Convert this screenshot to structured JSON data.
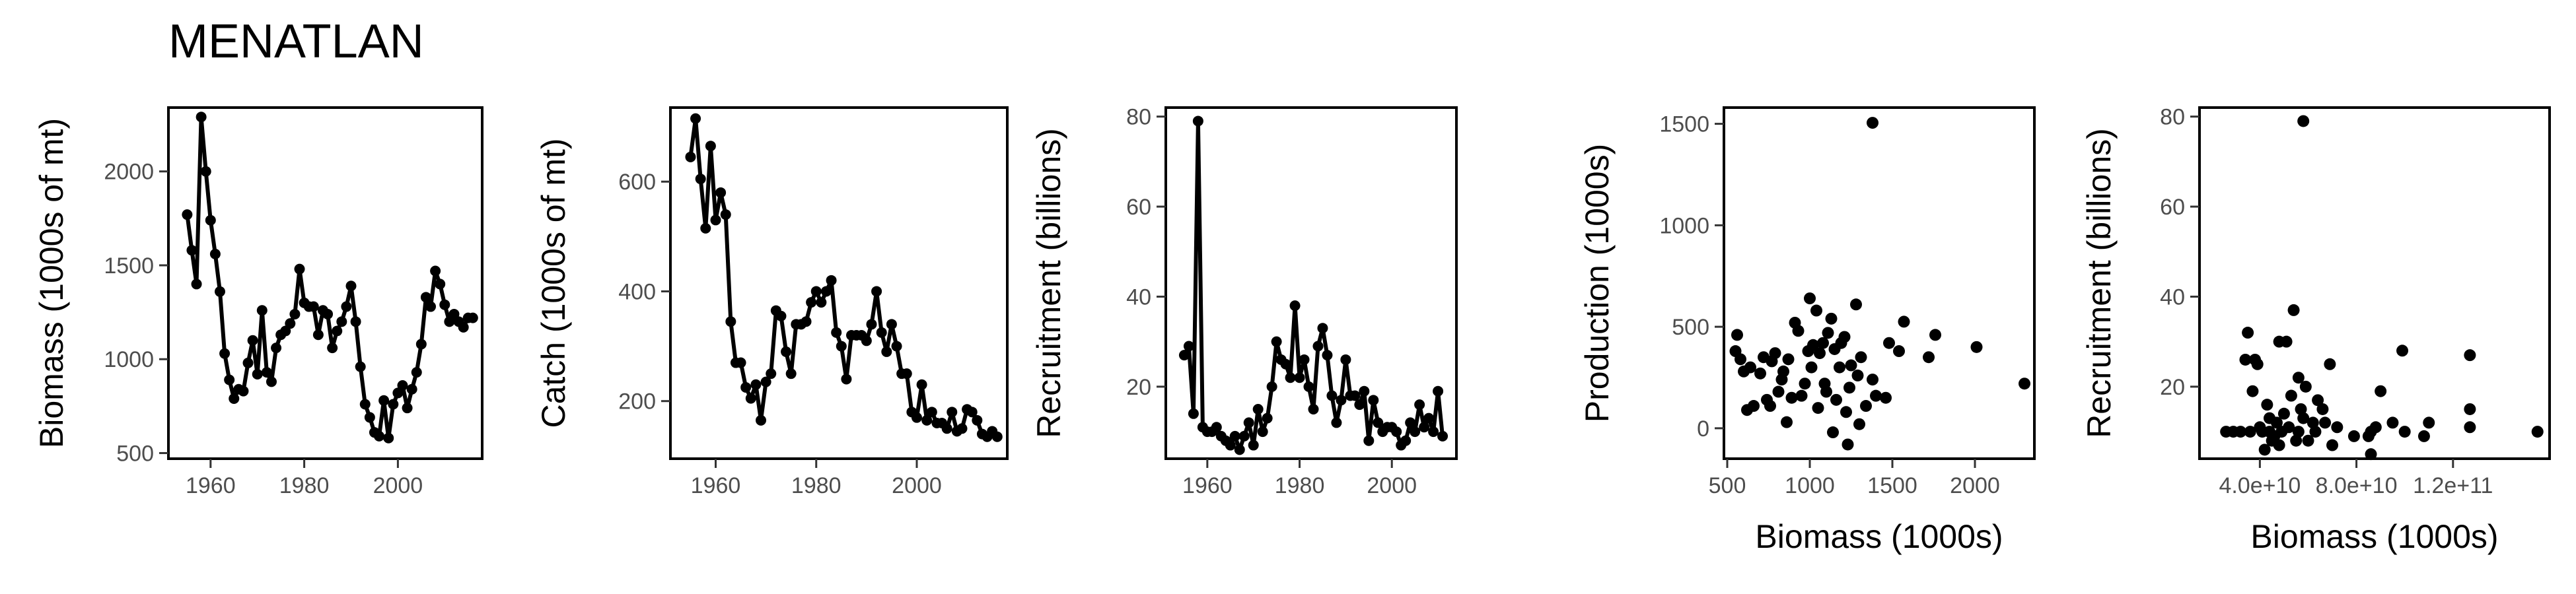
{
  "title": "MENATLAN",
  "chart_data": [
    {
      "type": "line",
      "xlabel": "",
      "ylabel": "Biomass (1000s of mt)",
      "xlim": [
        1951,
        2018
      ],
      "ylim": [
        470,
        2340
      ],
      "xticks": [
        1960,
        1980,
        2000
      ],
      "yticks": [
        500,
        1000,
        1500,
        2000
      ],
      "x": [
        1955,
        1956,
        1957,
        1958,
        1959,
        1960,
        1961,
        1962,
        1963,
        1964,
        1965,
        1966,
        1967,
        1968,
        1969,
        1970,
        1971,
        1972,
        1973,
        1974,
        1975,
        1976,
        1977,
        1978,
        1979,
        1980,
        1981,
        1982,
        1983,
        1984,
        1985,
        1986,
        1987,
        1988,
        1989,
        1990,
        1991,
        1992,
        1993,
        1994,
        1995,
        1996,
        1997,
        1998,
        1999,
        2000,
        2001,
        2002,
        2003,
        2004,
        2005,
        2006,
        2007,
        2008,
        2009,
        2010,
        2011,
        2012,
        2013,
        2014,
        2015,
        2016
      ],
      "y": [
        1770,
        1580,
        1400,
        2290,
        2000,
        1740,
        1560,
        1360,
        1030,
        890,
        790,
        840,
        830,
        980,
        1100,
        920,
        1260,
        930,
        880,
        1060,
        1130,
        1150,
        1190,
        1240,
        1480,
        1300,
        1280,
        1280,
        1130,
        1260,
        1240,
        1060,
        1150,
        1200,
        1280,
        1390,
        1200,
        960,
        760,
        690,
        610,
        590,
        780,
        580,
        760,
        820,
        860,
        740,
        840,
        930,
        1080,
        1330,
        1280,
        1470,
        1400,
        1290,
        1200,
        1240,
        1200,
        1170,
        1220,
        1220
      ]
    },
    {
      "type": "line",
      "xlabel": "",
      "ylabel": "Catch (1000s of mt)",
      "xlim": [
        1951,
        2018
      ],
      "ylim": [
        95,
        735
      ],
      "xticks": [
        1960,
        1980,
        2000
      ],
      "yticks": [
        200,
        400,
        600
      ],
      "x": [
        1955,
        1956,
        1957,
        1958,
        1959,
        1960,
        1961,
        1962,
        1963,
        1964,
        1965,
        1966,
        1967,
        1968,
        1969,
        1970,
        1971,
        1972,
        1973,
        1974,
        1975,
        1976,
        1977,
        1978,
        1979,
        1980,
        1981,
        1982,
        1983,
        1984,
        1985,
        1986,
        1987,
        1988,
        1989,
        1990,
        1991,
        1992,
        1993,
        1994,
        1995,
        1996,
        1997,
        1998,
        1999,
        2000,
        2001,
        2002,
        2003,
        2004,
        2005,
        2006,
        2007,
        2008,
        2009,
        2010,
        2011,
        2012,
        2013,
        2014,
        2015,
        2016
      ],
      "y": [
        645,
        715,
        605,
        515,
        665,
        530,
        580,
        540,
        345,
        270,
        270,
        225,
        205,
        230,
        165,
        235,
        250,
        365,
        355,
        290,
        250,
        340,
        340,
        345,
        380,
        400,
        380,
        400,
        420,
        325,
        300,
        240,
        320,
        320,
        320,
        310,
        340,
        400,
        325,
        290,
        340,
        300,
        250,
        250,
        180,
        170,
        230,
        165,
        180,
        160,
        160,
        150,
        180,
        145,
        150,
        185,
        180,
        165,
        140,
        135,
        145,
        135
      ]
    },
    {
      "type": "line",
      "xlabel": "",
      "ylabel": "Recruitment (billions)",
      "xlim": [
        1951,
        2014
      ],
      "ylim": [
        4,
        82
      ],
      "xticks": [
        1960,
        1980,
        2000
      ],
      "yticks": [
        20,
        40,
        60,
        80
      ],
      "x": [
        1955,
        1956,
        1957,
        1958,
        1959,
        1960,
        1961,
        1962,
        1963,
        1964,
        1965,
        1966,
        1967,
        1968,
        1969,
        1970,
        1971,
        1972,
        1973,
        1974,
        1975,
        1976,
        1977,
        1978,
        1979,
        1980,
        1981,
        1982,
        1983,
        1984,
        1985,
        1986,
        1987,
        1988,
        1989,
        1990,
        1991,
        1992,
        1993,
        1994,
        1995,
        1996,
        1997,
        1998,
        1999,
        2000,
        2001,
        2002,
        2003,
        2004,
        2005,
        2006,
        2007,
        2008,
        2009,
        2010,
        2011
      ],
      "y": [
        27,
        29,
        14,
        79,
        11,
        10,
        10,
        11,
        9,
        8,
        7,
        9,
        6,
        9,
        12,
        7,
        15,
        10,
        13,
        20,
        30,
        26,
        25,
        22,
        38,
        22,
        26,
        20,
        15,
        29,
        33,
        27,
        18,
        12,
        17,
        26,
        18,
        18,
        16,
        19,
        8,
        17,
        12,
        10,
        11,
        11,
        10,
        7,
        8,
        12,
        10,
        16,
        11,
        13,
        10,
        19,
        9
      ]
    },
    {
      "type": "scatter",
      "xlabel": "Biomass (1000s)",
      "ylabel": "Production (1000s)",
      "xlim": [
        480,
        2360
      ],
      "ylim": [
        -150,
        1580
      ],
      "xticks": [
        500,
        1000,
        1500,
        2000
      ],
      "yticks": [
        0,
        500,
        1000,
        1500
      ],
      "points": [
        [
          1380,
          1505
        ],
        [
          2300,
          220
        ],
        [
          2010,
          400
        ],
        [
          1760,
          460
        ],
        [
          1720,
          350
        ],
        [
          1570,
          525
        ],
        [
          1540,
          380
        ],
        [
          1480,
          420
        ],
        [
          1460,
          150
        ],
        [
          1400,
          160
        ],
        [
          1380,
          240
        ],
        [
          1340,
          110
        ],
        [
          1310,
          350
        ],
        [
          1300,
          20
        ],
        [
          1290,
          260
        ],
        [
          1280,
          610
        ],
        [
          1250,
          310
        ],
        [
          1240,
          200
        ],
        [
          1230,
          -80
        ],
        [
          1220,
          80
        ],
        [
          1210,
          450
        ],
        [
          1190,
          420
        ],
        [
          1180,
          300
        ],
        [
          1160,
          140
        ],
        [
          1150,
          390
        ],
        [
          1140,
          -20
        ],
        [
          1130,
          540
        ],
        [
          1110,
          470
        ],
        [
          1100,
          180
        ],
        [
          1090,
          220
        ],
        [
          1080,
          420
        ],
        [
          1060,
          370
        ],
        [
          1050,
          100
        ],
        [
          1040,
          580
        ],
        [
          1020,
          410
        ],
        [
          1010,
          300
        ],
        [
          1000,
          640
        ],
        [
          990,
          380
        ],
        [
          970,
          220
        ],
        [
          950,
          160
        ],
        [
          930,
          480
        ],
        [
          910,
          520
        ],
        [
          890,
          150
        ],
        [
          870,
          340
        ],
        [
          860,
          30
        ],
        [
          840,
          280
        ],
        [
          830,
          240
        ],
        [
          810,
          180
        ],
        [
          790,
          370
        ],
        [
          770,
          330
        ],
        [
          760,
          110
        ],
        [
          740,
          140
        ],
        [
          720,
          350
        ],
        [
          700,
          270
        ],
        [
          660,
          110
        ],
        [
          640,
          300
        ],
        [
          620,
          90
        ],
        [
          600,
          280
        ],
        [
          580,
          340
        ],
        [
          560,
          460
        ],
        [
          550,
          380
        ]
      ]
    },
    {
      "type": "scatter",
      "xlabel": "Biomass (1000s)",
      "ylabel": "Recruitment (billions)",
      "xticks": [
        "4.0e+10",
        "8.0e+10",
        "1.2e+11"
      ],
      "xlim": [
        15000000000.0,
        160000000000.0
      ],
      "ylim": [
        4,
        82
      ],
      "yticks": [
        20,
        40,
        60,
        80
      ],
      "points": [
        [
          58000000000.0,
          79
        ],
        [
          155000000000.0,
          10
        ],
        [
          127000000000.0,
          27
        ],
        [
          127000000000.0,
          15
        ],
        [
          127000000000.0,
          11
        ],
        [
          110000000000.0,
          12
        ],
        [
          108000000000.0,
          9
        ],
        [
          99000000000.0,
          28
        ],
        [
          100000000000.0,
          10
        ],
        [
          95000000000.0,
          12
        ],
        [
          90000000000.0,
          19
        ],
        [
          88000000000.0,
          11
        ],
        [
          86000000000.0,
          10
        ],
        [
          86000000000.0,
          5
        ],
        [
          85000000000.0,
          9
        ],
        [
          79000000000.0,
          9
        ],
        [
          72000000000.0,
          11
        ],
        [
          69000000000.0,
          25
        ],
        [
          66000000000.0,
          15
        ],
        [
          64000000000.0,
          17
        ],
        [
          63000000000.0,
          10
        ],
        [
          62000000000.0,
          12
        ],
        [
          60000000000.0,
          8
        ],
        [
          59000000000.0,
          20
        ],
        [
          58000000000.0,
          13
        ],
        [
          57000000000.0,
          15
        ],
        [
          56000000000.0,
          10
        ],
        [
          55000000000.0,
          8
        ],
        [
          54000000000.0,
          37
        ],
        [
          53000000000.0,
          18
        ],
        [
          52000000000.0,
          11
        ],
        [
          51000000000.0,
          30
        ],
        [
          50000000000.0,
          14
        ],
        [
          49000000000.0,
          10
        ],
        [
          48000000000.0,
          30
        ],
        [
          47000000000.0,
          12
        ],
        [
          46000000000.0,
          9
        ],
        [
          45000000000.0,
          8
        ],
        [
          44000000000.0,
          13
        ],
        [
          43000000000.0,
          16
        ],
        [
          42000000000.0,
          6
        ],
        [
          41000000000.0,
          10
        ],
        [
          40000000000.0,
          11
        ],
        [
          39000000000.0,
          25
        ],
        [
          38000000000.0,
          26
        ],
        [
          37000000000.0,
          19
        ],
        [
          36000000000.0,
          10
        ],
        [
          35000000000.0,
          32
        ],
        [
          34000000000.0,
          26
        ],
        [
          32000000000.0,
          10
        ],
        [
          29000000000.0,
          10
        ],
        [
          26000000000.0,
          10
        ],
        [
          70000000000.0,
          7
        ],
        [
          67000000000.0,
          12
        ],
        [
          56000000000.0,
          22
        ],
        [
          48000000000.0,
          7
        ],
        [
          44000000000.0,
          10
        ]
      ]
    }
  ]
}
